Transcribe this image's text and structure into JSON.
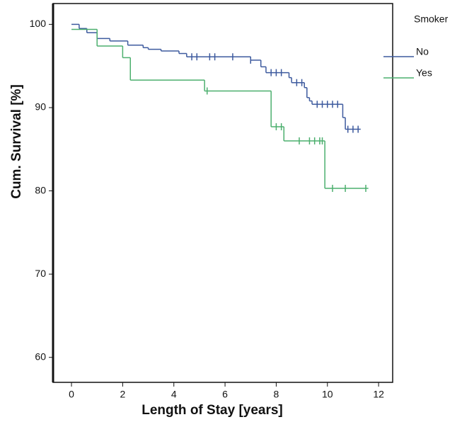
{
  "chart_data": {
    "type": "step",
    "xlabel": "Length of Stay [years]",
    "ylabel": "Cum. Survival [%]",
    "legend_title": "Smoker",
    "xlim": [
      -0.72,
      12.55
    ],
    "xticks": [
      0,
      2,
      4,
      6,
      8,
      10,
      12
    ],
    "ylim": [
      57,
      102.5
    ],
    "yticks": [
      60,
      70,
      80,
      90,
      100
    ],
    "series": [
      {
        "name": "No",
        "color": "#3d5a9e",
        "x": [
          0,
          0.3,
          0.6,
          1.0,
          1.5,
          2.2,
          2.8,
          3.0,
          3.5,
          4.2,
          4.5,
          7.0,
          7.4,
          7.6,
          8.5,
          8.6,
          9.1,
          9.2,
          9.3,
          9.4,
          10.6,
          10.7,
          11.3
        ],
        "values": [
          100,
          99.5,
          99,
          98.3,
          98,
          97.5,
          97.2,
          97,
          96.8,
          96.5,
          96.1,
          95.7,
          94.9,
          94.2,
          93.6,
          93.0,
          92.4,
          91.2,
          90.8,
          90.4,
          88.8,
          87.4,
          87.4
        ],
        "censor_x": [
          4.7,
          4.9,
          5.4,
          5.6,
          6.3,
          7.0,
          7.8,
          8.0,
          8.2,
          8.8,
          9.0,
          9.6,
          9.8,
          10.0,
          10.2,
          10.4,
          10.8,
          11.0,
          11.2
        ],
        "censor_values": [
          96.1,
          96.1,
          96.1,
          96.1,
          96.1,
          95.7,
          94.2,
          94.2,
          94.2,
          93.0,
          93.0,
          90.4,
          90.4,
          90.4,
          90.4,
          90.4,
          87.4,
          87.4,
          87.4
        ]
      },
      {
        "name": "Yes",
        "color": "#4caf6e",
        "x": [
          0,
          1.0,
          2.0,
          2.3,
          5.2,
          7.8,
          8.3,
          9.9,
          11.6
        ],
        "values": [
          99.4,
          97.4,
          96,
          93.3,
          92,
          87.7,
          86,
          80.3,
          80.3
        ],
        "censor_x": [
          5.3,
          8.0,
          8.2,
          8.9,
          9.3,
          9.5,
          9.7,
          9.8,
          10.2,
          10.7,
          11.5
        ],
        "censor_values": [
          92,
          87.7,
          87.7,
          86,
          86,
          86,
          86,
          86,
          80.3,
          80.3,
          80.3
        ]
      }
    ]
  }
}
